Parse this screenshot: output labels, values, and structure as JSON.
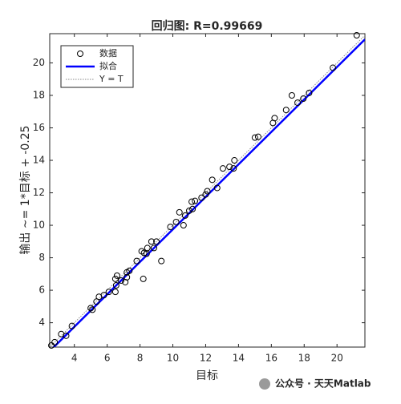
{
  "chart_data": {
    "type": "scatter",
    "title": "回归图: R=0.99669",
    "x_label": "目标",
    "y_label": "输出 ~= 1*目标 + -0.25",
    "xlim": [
      2.5,
      21.7
    ],
    "ylim": [
      2.5,
      21.8
    ],
    "xticks": [
      4,
      6,
      8,
      10,
      12,
      14,
      16,
      18,
      20
    ],
    "yticks": [
      4,
      6,
      8,
      10,
      12,
      14,
      16,
      18,
      20
    ],
    "legend": "upper left",
    "series": [
      {
        "name": "数据",
        "color": "#000000",
        "style": "marker",
        "x": [
          2.6,
          2.8,
          3.2,
          3.5,
          3.85,
          5.0,
          5.1,
          5.35,
          5.5,
          5.8,
          6.1,
          6.5,
          6.5,
          6.6,
          6.55,
          6.85,
          7.1,
          7.2,
          7.35,
          7.2,
          7.8,
          8.1,
          8.2,
          8.25,
          8.45,
          8.4,
          8.7,
          8.85,
          9.0,
          9.3,
          9.85,
          10.2,
          10.4,
          10.65,
          10.75,
          11.0,
          11.15,
          11.2,
          11.35,
          11.75,
          12.0,
          12.1,
          12.4,
          12.7,
          13.05,
          13.45,
          13.7,
          13.75,
          15.0,
          15.2,
          16.1,
          16.2,
          16.9,
          17.25,
          17.6,
          17.95,
          18.3,
          19.75,
          21.2
        ],
        "values": [
          2.6,
          2.8,
          3.3,
          3.2,
          3.8,
          4.9,
          4.8,
          5.3,
          5.6,
          5.7,
          5.9,
          5.9,
          6.7,
          6.9,
          6.3,
          6.6,
          6.5,
          7.1,
          7.2,
          6.8,
          7.8,
          8.4,
          6.7,
          8.3,
          8.6,
          8.25,
          9.0,
          8.6,
          9.0,
          7.8,
          9.9,
          10.2,
          10.8,
          10.0,
          10.6,
          10.9,
          11.45,
          11.0,
          11.5,
          11.7,
          11.9,
          12.1,
          12.8,
          12.3,
          13.5,
          13.6,
          13.5,
          14.0,
          15.4,
          15.45,
          16.3,
          16.6,
          17.1,
          18.0,
          17.55,
          17.8,
          18.15,
          19.7,
          21.7
        ]
      },
      {
        "name": "拟合",
        "color": "#0000ff",
        "style": "line",
        "x": [
          2.5,
          21.7
        ],
        "values": [
          2.25,
          21.45
        ]
      },
      {
        "name": "Y = T",
        "color": "#888888",
        "style": "dotted",
        "x": [
          2.5,
          21.7
        ],
        "values": [
          2.5,
          21.7
        ]
      }
    ],
    "watermark": "公众号 · 天天Matlab"
  }
}
